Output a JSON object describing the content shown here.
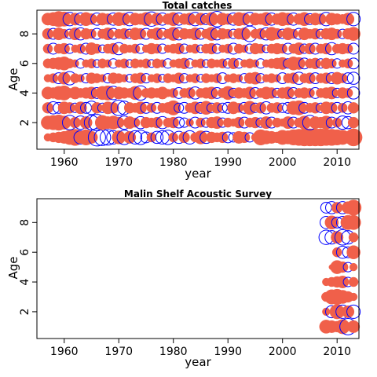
{
  "colors": {
    "positive": "#f0604a",
    "negative": "#0000ff",
    "axis": "#000000"
  },
  "chart_data": [
    {
      "type": "scatter",
      "subtype": "bubble",
      "title": "Total catches",
      "xlabel": "year",
      "ylabel": "Age",
      "xlim": [
        1955,
        2014
      ],
      "ylim": [
        0.2,
        9.6
      ],
      "xticks": [
        1960,
        1970,
        1980,
        1990,
        2000,
        2010
      ],
      "yticks": [
        2,
        4,
        6,
        8
      ],
      "x": [
        1957,
        1958,
        1959,
        1960,
        1961,
        1962,
        1963,
        1964,
        1965,
        1966,
        1967,
        1968,
        1969,
        1970,
        1971,
        1972,
        1973,
        1974,
        1975,
        1976,
        1977,
        1978,
        1979,
        1980,
        1981,
        1982,
        1983,
        1984,
        1985,
        1986,
        1987,
        1988,
        1989,
        1990,
        1991,
        1992,
        1993,
        1994,
        1995,
        1996,
        1997,
        1998,
        1999,
        2000,
        2001,
        2002,
        2003,
        2004,
        2005,
        2006,
        2007,
        2008,
        2009,
        2010,
        2011,
        2012,
        2013
      ],
      "ages": [
        1,
        2,
        3,
        4,
        5,
        6,
        7,
        8,
        9
      ],
      "residuals": [
        [
          0.2,
          0.3,
          0.4,
          0.5,
          0.7,
          0.9,
          -0.6,
          0.8,
          0.5,
          -1.0,
          -0.9,
          -0.8,
          -0.6,
          0.6,
          -0.7,
          0.5,
          -0.6,
          -0.7,
          -0.4,
          0.3,
          -0.5,
          -0.6,
          -0.7,
          0.3,
          -0.5,
          0.4,
          -0.6,
          0.3,
          0.6,
          -0.5,
          0.4,
          0.3,
          0.4,
          -0.4,
          -0.3,
          0.5,
          0.4,
          -0.3,
          0.2,
          0.8,
          0.6,
          0.5,
          0.4,
          0.7,
          0.6,
          0.8,
          0.9,
          1.0,
          1.0,
          1.0,
          1.0,
          0.9,
          0.9,
          0.8,
          0.7,
          0.5,
          1.0
        ],
        [
          0.6,
          0.7,
          0.8,
          0.6,
          -0.7,
          0.4,
          -0.6,
          0.5,
          -0.7,
          -0.9,
          0.7,
          0.5,
          0.6,
          0.4,
          -0.6,
          0.5,
          0.3,
          -0.5,
          0.4,
          0.3,
          0.4,
          -0.5,
          0.3,
          0.4,
          -0.4,
          -0.3,
          0.2,
          -0.4,
          0.3,
          -0.3,
          0.4,
          0.5,
          -0.3,
          0.3,
          0.2,
          0.4,
          -0.4,
          0.3,
          0.4,
          -0.3,
          0.5,
          -0.4,
          0.3,
          0.2,
          0.5,
          -0.4,
          0.3,
          0.6,
          -0.7,
          0.5,
          0.4,
          0.6,
          -0.4,
          0.3,
          -0.6,
          -0.5,
          0.4
        ],
        [
          0.4,
          -0.5,
          -0.4,
          0.5,
          0.4,
          -0.3,
          0.5,
          -0.4,
          -0.6,
          0.4,
          -0.3,
          0.5,
          0.4,
          -0.8,
          -0.6,
          0.4,
          0.3,
          0.5,
          -0.4,
          0.3,
          -0.4,
          0.3,
          0.4,
          0.7,
          -0.3,
          -0.4,
          0.3,
          0.5,
          -0.4,
          0.6,
          -0.3,
          0.4,
          -0.3,
          -0.4,
          0.5,
          0.3,
          -0.4,
          0.6,
          -0.3,
          0.4,
          -0.5,
          0.3,
          0.4,
          -0.3,
          -0.4,
          0.6,
          0.7,
          -0.4,
          0.3,
          0.4,
          -0.3,
          0.5,
          0.4,
          -0.4,
          0.3,
          -0.5,
          0.4
        ],
        [
          0.5,
          0.4,
          0.6,
          0.7,
          0.3,
          0.5,
          0.3,
          0.4,
          0.5,
          -0.4,
          0.6,
          0.7,
          -0.6,
          0.5,
          0.4,
          0.3,
          0.6,
          -0.7,
          0.3,
          0.4,
          0.3,
          0.5,
          0.2,
          0.3,
          -0.4,
          0.3,
          0.4,
          -0.5,
          0.3,
          0.4,
          0.5,
          -0.4,
          0.3,
          0.6,
          -0.3,
          0.4,
          0.3,
          0.5,
          -0.4,
          0.3,
          0.5,
          0.4,
          -0.3,
          0.4,
          0.5,
          -0.4,
          0.3,
          0.4,
          0.3,
          -0.4,
          0.3,
          0.4,
          0.5,
          -0.3,
          0.4,
          0.3,
          -0.5
        ],
        [
          0.2,
          0.3,
          -0.4,
          0.5,
          -0.6,
          0.3,
          0.2,
          -0.3,
          0.4,
          0.3,
          0.2,
          -0.3,
          0.4,
          0.3,
          0.2,
          -0.2,
          0.3,
          0.4,
          -0.3,
          0.2,
          0.3,
          -0.2,
          0.3,
          0.2,
          0.4,
          -0.3,
          0.2,
          0.3,
          -0.2,
          0.3,
          0.2,
          0.3,
          -0.4,
          0.2,
          0.3,
          0.2,
          -0.3,
          0.4,
          0.5,
          -0.3,
          0.2,
          0.3,
          0.2,
          -0.4,
          0.3,
          0.4,
          -0.5,
          0.3,
          0.4,
          -0.4,
          0.3,
          0.4,
          -0.4,
          0.5,
          0.3,
          -0.4,
          -0.5
        ],
        [
          0.3,
          0.4,
          0.5,
          0.6,
          0.3,
          0.2,
          -0.3,
          0.2,
          0.3,
          -0.2,
          0.3,
          0.2,
          -0.3,
          0.2,
          0.3,
          -0.2,
          0.3,
          0.2,
          0.3,
          -0.2,
          0.3,
          0.2,
          -0.3,
          0.2,
          0.3,
          0.4,
          -0.3,
          0.2,
          0.3,
          -0.2,
          0.3,
          0.2,
          0.3,
          -0.3,
          0.4,
          -0.3,
          0.2,
          0.3,
          0.2,
          -0.3,
          0.2,
          0.3,
          0.4,
          0.5,
          -0.3,
          0.6,
          0.5,
          -0.4,
          0.3,
          0.4,
          -0.3,
          0.4,
          0.3,
          -0.3,
          0.2,
          0.3,
          -0.4
        ],
        [
          0.3,
          -0.4,
          0.3,
          0.4,
          -0.3,
          0.2,
          0.3,
          -0.4,
          0.5,
          0.3,
          -0.2,
          0.3,
          0.4,
          -0.5,
          0.3,
          0.2,
          0.3,
          -0.3,
          0.2,
          0.4,
          0.3,
          -0.3,
          0.2,
          0.3,
          0.4,
          -0.3,
          0.2,
          0.3,
          -0.2,
          0.3,
          0.4,
          -0.3,
          0.2,
          0.3,
          -0.4,
          0.3,
          0.2,
          -0.3,
          0.4,
          0.3,
          -0.2,
          0.3,
          0.4,
          0.3,
          -0.4,
          0.3,
          0.5,
          -0.3,
          0.4,
          -0.4,
          0.3,
          0.4,
          -0.5,
          0.3,
          0.4,
          0.3,
          -0.4
        ],
        [
          0.4,
          -0.4,
          0.5,
          0.3,
          -0.3,
          0.5,
          -0.5,
          0.4,
          0.3,
          -0.4,
          0.3,
          0.5,
          -0.4,
          0.3,
          0.4,
          -0.3,
          0.5,
          0.4,
          -0.4,
          0.3,
          0.5,
          -0.4,
          0.3,
          0.6,
          -0.5,
          0.4,
          0.3,
          0.5,
          -0.4,
          0.3,
          0.6,
          -0.5,
          0.4,
          0.3,
          -0.3,
          0.4,
          0.5,
          -0.8,
          0.3,
          0.4,
          -0.5,
          0.6,
          0.4,
          -0.3,
          0.5,
          0.3,
          -0.4,
          0.5,
          0.3,
          0.4,
          -0.3,
          0.4,
          0.5,
          0.3,
          -0.3,
          0.4,
          0.6
        ],
        [
          0.5,
          0.6,
          0.8,
          0.7,
          -0.6,
          0.5,
          -0.5,
          0.6,
          0.4,
          -0.5,
          0.5,
          0.4,
          -0.5,
          0.6,
          0.5,
          -0.6,
          0.5,
          0.4,
          0.6,
          -0.7,
          0.5,
          -0.5,
          0.4,
          0.6,
          -0.5,
          0.4,
          0.5,
          -0.6,
          0.5,
          -0.4,
          0.6,
          -0.8,
          0.5,
          0.4,
          -0.5,
          0.6,
          0.5,
          -0.6,
          0.5,
          0.4,
          0.6,
          -0.5,
          0.4,
          0.6,
          0.5,
          -0.5,
          0.4,
          0.6,
          -0.4,
          0.5,
          0.4,
          -0.6,
          0.5,
          0.4,
          0.3,
          0.5,
          -0.6
        ]
      ]
    },
    {
      "type": "scatter",
      "subtype": "bubble",
      "title": "Malin Shelf Acoustic Survey",
      "xlabel": "year",
      "ylabel": "Age",
      "xlim": [
        1955,
        2014
      ],
      "ylim": [
        0.2,
        9.6
      ],
      "xticks": [
        1960,
        1970,
        1980,
        1990,
        2000,
        2010
      ],
      "yticks": [
        2,
        4,
        6,
        8
      ],
      "x": [
        2008,
        2009,
        2010,
        2011,
        2012,
        2013
      ],
      "ages": [
        1,
        2,
        3,
        4,
        5,
        6,
        7,
        8,
        9
      ],
      "residuals": [
        [
          0.6,
          0.5,
          0.4,
          0.7,
          -0.9,
          0.5
        ],
        [
          0.2,
          -0.5,
          0.7,
          -0.6,
          0.5,
          -0.6
        ],
        [
          0.3,
          0.7,
          0.8,
          0.6,
          0.4,
          0.2
        ],
        [
          0.2,
          0.3,
          0.4,
          0.5,
          -0.3,
          0.3
        ],
        [
          0.0,
          0.1,
          0.6,
          0.4,
          -0.3,
          0.2
        ],
        [
          0.0,
          0.0,
          0.3,
          -0.5,
          -0.4,
          0.6
        ],
        [
          -0.7,
          -0.6,
          0.5,
          -0.8,
          -0.6,
          0.3
        ],
        [
          -0.5,
          0.6,
          -0.4,
          -0.5,
          0.7,
          0.7
        ],
        [
          -0.4,
          -0.5,
          0.4,
          -0.5,
          0.5,
          0.8
        ]
      ]
    }
  ]
}
